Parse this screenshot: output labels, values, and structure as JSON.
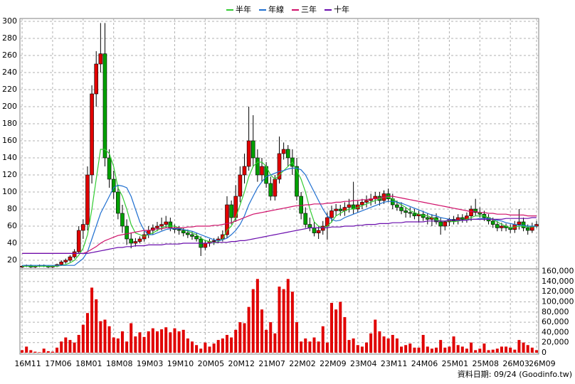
{
  "chart_data": {
    "type": "candlestick",
    "categories": [
      "16M11",
      null,
      null,
      null,
      null,
      null,
      null,
      "17M06",
      null,
      null,
      null,
      null,
      null,
      null,
      "18M01",
      null,
      null,
      null,
      null,
      null,
      null,
      "18M08",
      null,
      null,
      null,
      null,
      null,
      null,
      "19M03",
      null,
      null,
      null,
      null,
      null,
      null,
      "19M10",
      null,
      null,
      null,
      null,
      null,
      null,
      "20M05",
      null,
      null,
      null,
      null,
      null,
      null,
      "20M12",
      null,
      null,
      null,
      null,
      null,
      null,
      "21M07",
      null,
      null,
      null,
      null,
      null,
      null,
      "22M02",
      null,
      null,
      null,
      null,
      null,
      null,
      "22M09",
      null,
      null,
      null,
      null,
      null,
      null,
      "23M04",
      null,
      null,
      null,
      null,
      null,
      null,
      "23M11",
      null,
      null,
      null,
      null,
      null,
      null,
      "24M06",
      null,
      null,
      null,
      null,
      null,
      null,
      "25M01",
      null,
      null,
      null,
      null,
      null,
      null,
      "25M08",
      null,
      null,
      null,
      null,
      null,
      null,
      "26M03",
      null,
      null,
      null,
      null,
      null,
      "26M09"
    ],
    "open": [
      12,
      13,
      14,
      12,
      13,
      14,
      13,
      12,
      13,
      15,
      18,
      20,
      24,
      30,
      55,
      62,
      120,
      215,
      250,
      262,
      140,
      115,
      100,
      75,
      60,
      45,
      40,
      42,
      45,
      50,
      55,
      58,
      60,
      62,
      65,
      58,
      56,
      55,
      52,
      50,
      48,
      45,
      35,
      40,
      42,
      43,
      45,
      50,
      85,
      70,
      95,
      120,
      130,
      160,
      140,
      120,
      130,
      110,
      95,
      115,
      145,
      150,
      140,
      130,
      95,
      75,
      62,
      58,
      52,
      55,
      60,
      70,
      78,
      80,
      78,
      82,
      85,
      80,
      85,
      88,
      90,
      92,
      95,
      90,
      98,
      92,
      85,
      82,
      78,
      76,
      75,
      72,
      74,
      70,
      68,
      70,
      65,
      60,
      65,
      68,
      66,
      70,
      68,
      72,
      80,
      76,
      74,
      70,
      66,
      62,
      58,
      60,
      58,
      56,
      62,
      65,
      58,
      55,
      60
    ],
    "high": [
      14,
      15,
      15,
      14,
      15,
      15,
      14,
      14,
      16,
      20,
      22,
      26,
      33,
      60,
      68,
      130,
      225,
      265,
      298,
      298,
      150,
      125,
      108,
      85,
      68,
      52,
      46,
      48,
      54,
      60,
      62,
      65,
      70,
      72,
      70,
      62,
      60,
      58,
      56,
      54,
      52,
      48,
      44,
      45,
      46,
      48,
      55,
      95,
      90,
      108,
      130,
      145,
      200,
      190,
      150,
      140,
      135,
      118,
      120,
      165,
      158,
      155,
      150,
      140,
      100,
      82,
      70,
      65,
      60,
      66,
      76,
      84,
      86,
      85,
      88,
      92,
      112,
      90,
      92,
      96,
      98,
      100,
      100,
      102,
      104,
      98,
      90,
      88,
      82,
      82,
      80,
      78,
      78,
      75,
      74,
      75,
      70,
      66,
      70,
      72,
      74,
      74,
      76,
      84,
      92,
      82,
      78,
      74,
      70,
      66,
      64,
      63,
      62,
      66,
      80,
      70,
      62,
      64,
      66
    ],
    "low": [
      11,
      12,
      11,
      11,
      12,
      12,
      11,
      11,
      12,
      14,
      16,
      18,
      22,
      28,
      45,
      55,
      110,
      200,
      240,
      130,
      105,
      92,
      68,
      52,
      38,
      34,
      36,
      40,
      42,
      46,
      50,
      54,
      55,
      58,
      54,
      52,
      50,
      48,
      46,
      44,
      42,
      25,
      32,
      36,
      38,
      40,
      42,
      46,
      62,
      65,
      88,
      110,
      125,
      130,
      112,
      112,
      105,
      90,
      90,
      110,
      138,
      130,
      120,
      90,
      68,
      58,
      54,
      48,
      45,
      50,
      44,
      64,
      72,
      72,
      72,
      76,
      74,
      76,
      80,
      82,
      84,
      86,
      84,
      86,
      88,
      80,
      78,
      74,
      70,
      70,
      68,
      64,
      66,
      62,
      60,
      62,
      50,
      55,
      60,
      62,
      62,
      64,
      64,
      66,
      72,
      70,
      66,
      62,
      58,
      54,
      54,
      54,
      52,
      52,
      56,
      54,
      50,
      52,
      58
    ],
    "close": [
      13,
      14,
      12,
      13,
      14,
      13,
      12,
      13,
      15,
      18,
      20,
      24,
      30,
      55,
      62,
      120,
      215,
      250,
      262,
      140,
      115,
      100,
      75,
      60,
      45,
      40,
      42,
      45,
      50,
      55,
      58,
      60,
      62,
      65,
      58,
      56,
      55,
      52,
      50,
      48,
      45,
      35,
      40,
      42,
      43,
      45,
      50,
      85,
      70,
      95,
      120,
      130,
      160,
      140,
      120,
      130,
      110,
      95,
      115,
      145,
      150,
      140,
      130,
      95,
      75,
      62,
      58,
      52,
      55,
      60,
      70,
      78,
      80,
      78,
      82,
      85,
      80,
      85,
      88,
      90,
      92,
      95,
      90,
      98,
      92,
      85,
      82,
      78,
      76,
      75,
      72,
      74,
      70,
      68,
      70,
      65,
      60,
      65,
      68,
      66,
      70,
      68,
      72,
      80,
      76,
      74,
      70,
      66,
      62,
      58,
      60,
      58,
      56,
      62,
      65,
      58,
      55,
      60,
      62
    ],
    "up_color": "#e00000",
    "down_color": "#00a000",
    "series": [
      {
        "name": "半年",
        "color": "#33cc33",
        "values": [
          13,
          13,
          13,
          13,
          13,
          13,
          13,
          13,
          13,
          14,
          15,
          17,
          20,
          26,
          34,
          50,
          80,
          115,
          150,
          150,
          145,
          130,
          105,
          95,
          80,
          62,
          52,
          50,
          48,
          50,
          52,
          55,
          58,
          60,
          60,
          60,
          58,
          56,
          54,
          52,
          50,
          46,
          43,
          42,
          40,
          42,
          45,
          55,
          60,
          70,
          85,
          100,
          118,
          130,
          135,
          135,
          130,
          120,
          115,
          120,
          125,
          130,
          135,
          125,
          115,
          100,
          80,
          65,
          60,
          58,
          60,
          65,
          72,
          75,
          78,
          80,
          80,
          82,
          84,
          86,
          88,
          90,
          92,
          94,
          94,
          92,
          88,
          85,
          82,
          78,
          76,
          74,
          73,
          72,
          70,
          68,
          66,
          66,
          66,
          65,
          66,
          67,
          68,
          70,
          72,
          72,
          72,
          70,
          68,
          65,
          62,
          60,
          58,
          59,
          60,
          60,
          59,
          59,
          60
        ]
      },
      {
        "name": "年線",
        "color": "#1f6fd0",
        "values": [
          14,
          14,
          14,
          14,
          14,
          14,
          14,
          14,
          14,
          14,
          14,
          14,
          14,
          18,
          22,
          30,
          45,
          60,
          75,
          85,
          95,
          105,
          108,
          107,
          105,
          95,
          80,
          65,
          55,
          50,
          50,
          52,
          54,
          56,
          57,
          57,
          57,
          56,
          55,
          54,
          52,
          50,
          48,
          46,
          44,
          43,
          44,
          46,
          50,
          55,
          62,
          72,
          85,
          95,
          105,
          112,
          118,
          120,
          122,
          124,
          125,
          127,
          128,
          128,
          126,
          120,
          110,
          100,
          90,
          80,
          72,
          68,
          66,
          67,
          70,
          72,
          74,
          76,
          78,
          80,
          82,
          84,
          86,
          88,
          89,
          89,
          88,
          87,
          85,
          83,
          81,
          79,
          77,
          75,
          73,
          72,
          70,
          69,
          68,
          67,
          67,
          67,
          67,
          68,
          68,
          69,
          69,
          69,
          68,
          67,
          66,
          64,
          63,
          62,
          61,
          61,
          60,
          60,
          60
        ]
      },
      {
        "name": "三年",
        "color": "#d0106a",
        "values": [
          28,
          28,
          28,
          28,
          28,
          28,
          28,
          28,
          28,
          28,
          28,
          28,
          28,
          28,
          28,
          30,
          33,
          36,
          40,
          43,
          45,
          47,
          49,
          50,
          51,
          52,
          53,
          54,
          55,
          55,
          56,
          57,
          57,
          58,
          58,
          58,
          58,
          58,
          59,
          59,
          60,
          60,
          60,
          60,
          61,
          61,
          62,
          63,
          64,
          66,
          68,
          70,
          72,
          74,
          75,
          76,
          77,
          78,
          79,
          80,
          81,
          82,
          83,
          84,
          84,
          85,
          85,
          86,
          86,
          86,
          87,
          87,
          88,
          88,
          89,
          89,
          90,
          90,
          91,
          91,
          92,
          92,
          93,
          94,
          95,
          95,
          94,
          93,
          92,
          91,
          90,
          89,
          88,
          87,
          86,
          85,
          84,
          83,
          82,
          81,
          80,
          79,
          78,
          77,
          77,
          76,
          76,
          75,
          75,
          74,
          74,
          74,
          73,
          73,
          73,
          73,
          72,
          72,
          72
        ]
      },
      {
        "name": "十年",
        "color": "#6a0dad",
        "values": [
          28,
          28,
          28,
          28,
          28,
          28,
          28,
          28,
          28,
          28,
          28,
          28,
          28,
          28,
          28,
          28,
          29,
          30,
          31,
          32,
          33,
          34,
          35,
          35,
          36,
          36,
          37,
          37,
          37,
          38,
          38,
          38,
          38,
          39,
          39,
          39,
          39,
          40,
          40,
          40,
          40,
          40,
          40,
          40,
          41,
          41,
          41,
          41,
          42,
          42,
          43,
          43,
          44,
          45,
          46,
          47,
          48,
          49,
          50,
          51,
          52,
          53,
          54,
          55,
          56,
          57,
          58,
          58,
          58,
          58,
          58,
          59,
          59,
          59,
          60,
          60,
          60,
          61,
          61,
          62,
          62,
          62,
          63,
          63,
          63,
          64,
          64,
          64,
          65,
          65,
          65,
          65,
          65,
          66,
          66,
          66,
          66,
          66,
          67,
          67,
          67,
          67,
          67,
          68,
          68,
          68,
          68,
          68,
          68,
          68,
          68,
          69,
          69,
          69,
          69,
          69,
          69,
          70,
          70
        ]
      }
    ],
    "ylim": [
      10,
      300
    ],
    "yticks": [
      20,
      40,
      60,
      80,
      100,
      120,
      140,
      160,
      180,
      200,
      220,
      240,
      260,
      280,
      300
    ],
    "volume": [
      5000,
      12000,
      5000,
      2000,
      1000,
      8000,
      3000,
      2000,
      10000,
      22000,
      30000,
      25000,
      20000,
      35000,
      55000,
      78000,
      128000,
      105000,
      62000,
      65000,
      52000,
      30000,
      28000,
      42000,
      22000,
      58000,
      32000,
      40000,
      31000,
      42000,
      48000,
      42000,
      46000,
      50000,
      40000,
      48000,
      42000,
      45000,
      28000,
      22000,
      15000,
      8000,
      20000,
      12000,
      18000,
      25000,
      28000,
      35000,
      30000,
      45000,
      60000,
      58000,
      90000,
      125000,
      145000,
      85000,
      45000,
      60000,
      38000,
      130000,
      125000,
      145000,
      120000,
      60000,
      22000,
      28000,
      22000,
      30000,
      22000,
      52000,
      20000,
      98000,
      85000,
      100000,
      70000,
      25000,
      28000,
      15000,
      12000,
      20000,
      38000,
      65000,
      42000,
      32000,
      28000,
      35000,
      28000,
      12000,
      15000,
      18000,
      10000,
      10000,
      35000,
      12000,
      8000,
      10000,
      25000,
      10000,
      12000,
      32000,
      15000,
      12000,
      8000,
      20000,
      5000,
      8000,
      18000,
      5000,
      6000,
      8000,
      12000,
      12000,
      10000,
      6000,
      25000,
      20000,
      15000,
      10000,
      5000
    ],
    "volume_color": "#e00000",
    "y2lim": [
      0,
      165000
    ],
    "y2ticks": [
      0,
      {
        "value": 20000,
        "label": "20,000"
      },
      {
        "value": 40000,
        "label": "40,000"
      },
      {
        "value": 60000,
        "label": "60,000"
      },
      {
        "value": 80000,
        "label": "80,000"
      },
      {
        "value": 100000,
        "label": "100,000"
      },
      {
        "value": 120000,
        "label": "120,000"
      },
      {
        "value": 140000,
        "label": "140,000"
      },
      {
        "value": 160000,
        "label": "160,000"
      }
    ],
    "grid": true,
    "legend": "top",
    "source": "資料日期: 09/24 (Goodinfo.tw)"
  }
}
